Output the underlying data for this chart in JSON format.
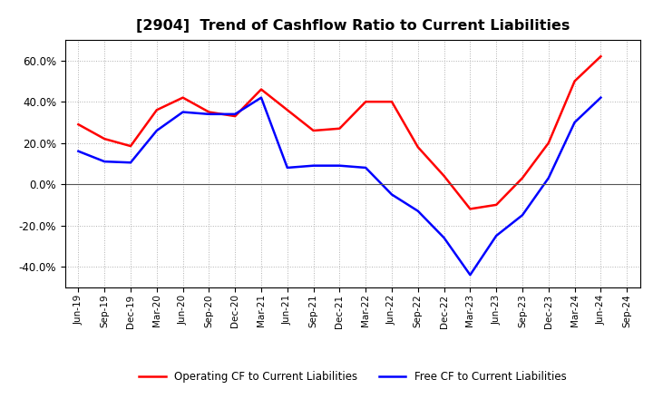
{
  "title": "[2904]  Trend of Cashflow Ratio to Current Liabilities",
  "x_labels": [
    "Jun-19",
    "Sep-19",
    "Dec-19",
    "Mar-20",
    "Jun-20",
    "Sep-20",
    "Dec-20",
    "Mar-21",
    "Jun-21",
    "Sep-21",
    "Dec-21",
    "Mar-22",
    "Jun-22",
    "Sep-22",
    "Dec-22",
    "Mar-23",
    "Jun-23",
    "Sep-23",
    "Dec-23",
    "Mar-24",
    "Jun-24",
    "Sep-24"
  ],
  "operating_cf": [
    29.0,
    22.0,
    18.5,
    36.0,
    42.0,
    35.0,
    33.0,
    46.0,
    36.0,
    26.0,
    27.0,
    40.0,
    40.0,
    18.0,
    4.0,
    -12.0,
    -10.0,
    3.0,
    20.0,
    50.0,
    62.0,
    null
  ],
  "free_cf": [
    16.0,
    11.0,
    10.5,
    26.0,
    35.0,
    34.0,
    34.0,
    42.0,
    8.0,
    9.0,
    9.0,
    8.0,
    -5.0,
    -13.0,
    -26.0,
    -44.0,
    -25.0,
    -15.0,
    3.0,
    30.0,
    42.0,
    null
  ],
  "ylim": [
    -50.0,
    70.0
  ],
  "y_ticks": [
    -40.0,
    -20.0,
    0.0,
    20.0,
    40.0,
    60.0
  ],
  "operating_color": "#ff0000",
  "free_color": "#0000ff",
  "grid_color": "#b0b0b0",
  "background_color": "#ffffff",
  "plot_bg_color": "#ffffff",
  "legend_operating": "Operating CF to Current Liabilities",
  "legend_free": "Free CF to Current Liabilities"
}
